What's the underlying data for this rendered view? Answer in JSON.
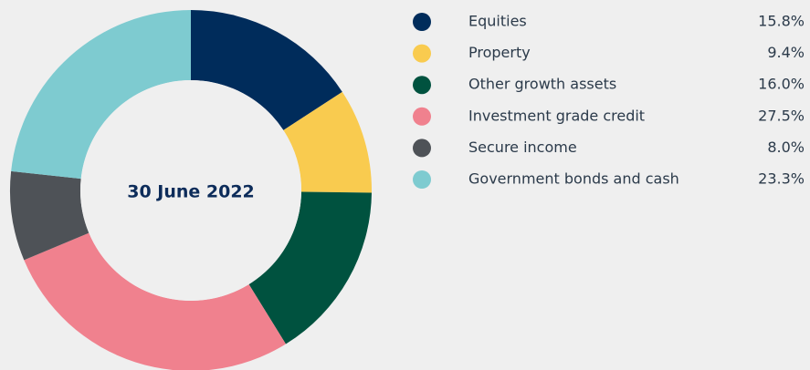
{
  "chart_data": {
    "type": "pie",
    "center_label": "30 June 2022",
    "categories": [
      "Equities",
      "Property",
      "Other growth assets",
      "Investment grade credit",
      "Secure income",
      "Government bonds and cash"
    ],
    "values": [
      15.8,
      9.4,
      16.0,
      27.5,
      8.0,
      23.3
    ],
    "value_labels": [
      "15.8%",
      "9.4%",
      "16.0%",
      "27.5%",
      "8.0%",
      "23.3%"
    ],
    "colors": [
      "#002c5b",
      "#f9cb4f",
      "#00523f",
      "#f0818e",
      "#4e5257",
      "#7ecbd0"
    ],
    "legend": "right"
  }
}
